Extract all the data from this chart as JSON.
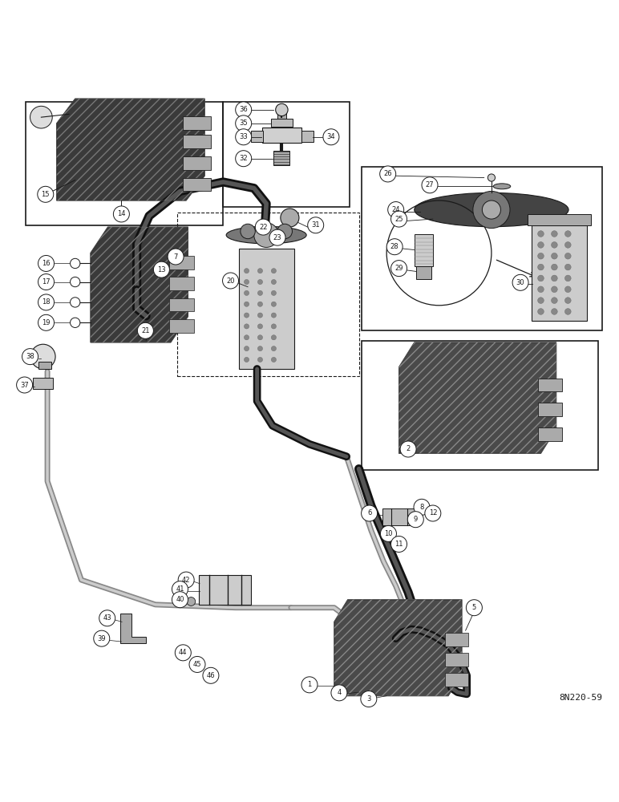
{
  "figure_code": "8N220-59",
  "bg_color": "#ffffff",
  "line_color": "#1a1a1a",
  "fig_width": 7.72,
  "fig_height": 10.0,
  "dpi": 100
}
